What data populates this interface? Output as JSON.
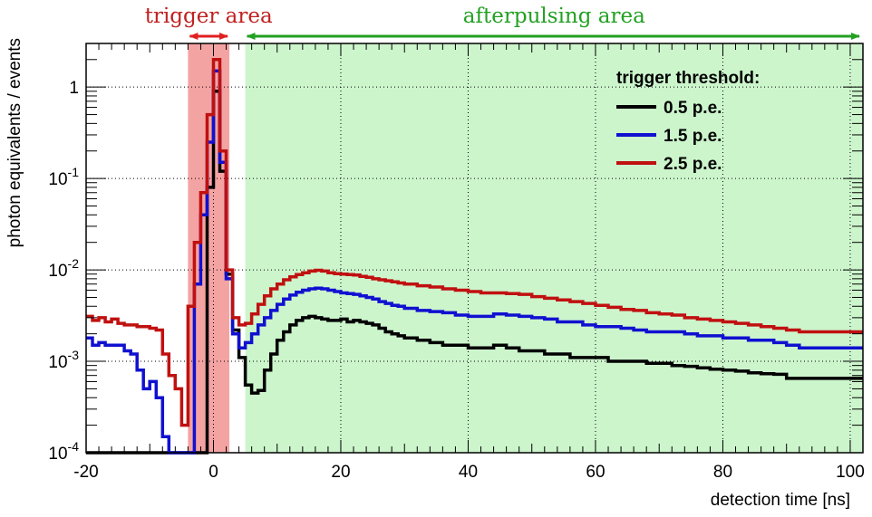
{
  "chart_data": {
    "type": "line",
    "title": "",
    "xlabel": "detection time [ns]",
    "ylabel": "photon equivalents / events",
    "xlim": [
      -20,
      102
    ],
    "ylim": [
      0.0001,
      3
    ],
    "y_scale": "log",
    "grid": true,
    "x_ticks": [
      {
        "value": -20,
        "label": "-20"
      },
      {
        "value": 0,
        "label": "0"
      },
      {
        "value": 20,
        "label": "20"
      },
      {
        "value": 40,
        "label": "40"
      },
      {
        "value": 60,
        "label": "60"
      },
      {
        "value": 80,
        "label": "80"
      },
      {
        "value": 100,
        "label": "100"
      }
    ],
    "y_ticks": [
      {
        "value": 0.0001,
        "base": "10",
        "exp": "-4"
      },
      {
        "value": 0.001,
        "base": "10",
        "exp": "-3"
      },
      {
        "value": 0.01,
        "base": "10",
        "exp": "-2"
      },
      {
        "value": 0.1,
        "base": "10",
        "exp": "-1"
      },
      {
        "value": 1,
        "base": "1",
        "exp": ""
      }
    ],
    "regions": [
      {
        "label": "trigger area",
        "x_range": [
          -4,
          2.5
        ],
        "color": "#f4a3a3",
        "label_color": "#c02020",
        "arrow_color": "#e02020"
      },
      {
        "label": "afterpulsing area",
        "x_range": [
          5,
          102
        ],
        "color": "#ccf5cc",
        "label_color": "#22a022",
        "arrow_color": "#22a022"
      }
    ],
    "legend": {
      "title": "trigger threshold:",
      "position": "top-right"
    },
    "bin_width": 1,
    "series": [
      {
        "name": "0.5 p.e.",
        "color": "#000000",
        "x": [
          -20,
          -19,
          -18,
          -17,
          -16,
          -15,
          -14,
          -13,
          -12,
          -11,
          -10,
          -9,
          -8,
          -7,
          -6,
          -5,
          -4,
          -3,
          -2,
          -1,
          0,
          1,
          2,
          3,
          4,
          5,
          6,
          7,
          8,
          9,
          10,
          11,
          12,
          13,
          14,
          15,
          16,
          17,
          18,
          19,
          20,
          21,
          22,
          23,
          24,
          25,
          26,
          27,
          28,
          29,
          30,
          32,
          34,
          36,
          38,
          40,
          42,
          44,
          46,
          48,
          50,
          52,
          54,
          56,
          58,
          60,
          62,
          64,
          66,
          68,
          70,
          72,
          74,
          76,
          78,
          80,
          82,
          84,
          86,
          88,
          90,
          92,
          94,
          96,
          98,
          100
        ],
        "values": [
          0.0001,
          0.0001,
          0.0001,
          0.0001,
          0.0001,
          0.0001,
          0.0001,
          0.0001,
          0.0001,
          0.0001,
          0.0001,
          0.0001,
          0.0001,
          0.0001,
          0.0001,
          0.0001,
          0.0001,
          0.0001,
          0.0001,
          0.08,
          0.9,
          0.12,
          0.009,
          0.0022,
          0.0011,
          0.00055,
          0.00045,
          0.00048,
          0.0008,
          0.0012,
          0.0017,
          0.0021,
          0.0025,
          0.0028,
          0.003,
          0.0031,
          0.003,
          0.0029,
          0.0028,
          0.0028,
          0.0029,
          0.0027,
          0.0028,
          0.0027,
          0.0026,
          0.0025,
          0.0023,
          0.0021,
          0.002,
          0.0019,
          0.0018,
          0.0017,
          0.0016,
          0.0015,
          0.0015,
          0.0014,
          0.0014,
          0.0015,
          0.0014,
          0.0013,
          0.0013,
          0.0012,
          0.0012,
          0.0011,
          0.0011,
          0.0011,
          0.001,
          0.001,
          0.001,
          0.00095,
          0.00095,
          0.0009,
          0.00088,
          0.00085,
          0.00082,
          0.0008,
          0.00078,
          0.00075,
          0.00073,
          0.00072,
          0.00065,
          0.00065,
          0.00065,
          0.00065,
          0.00065,
          0.00065
        ]
      },
      {
        "name": "1.5  p.e.",
        "color": "#1010d0",
        "x": [
          -20,
          -19,
          -18,
          -17,
          -16,
          -15,
          -14,
          -13,
          -12,
          -11,
          -10,
          -9,
          -8,
          -7,
          -6,
          -5,
          -4,
          -3,
          -2,
          -1,
          0,
          1,
          2,
          3,
          4,
          5,
          6,
          7,
          8,
          9,
          10,
          11,
          12,
          13,
          14,
          15,
          16,
          17,
          18,
          19,
          20,
          21,
          22,
          23,
          24,
          25,
          26,
          27,
          28,
          29,
          30,
          32,
          34,
          36,
          38,
          40,
          42,
          44,
          46,
          48,
          50,
          52,
          54,
          56,
          58,
          60,
          62,
          64,
          66,
          68,
          70,
          72,
          74,
          76,
          78,
          80,
          82,
          84,
          86,
          88,
          90,
          92,
          94,
          96,
          98,
          100
        ],
        "values": [
          0.0018,
          0.0015,
          0.0016,
          0.0015,
          0.0015,
          0.0015,
          0.0013,
          0.0012,
          0.0008,
          0.0005,
          0.0006,
          0.0004,
          0.00015,
          0.0001,
          0.0001,
          0.0001,
          0.0001,
          0.007,
          0.04,
          0.25,
          1.5,
          0.15,
          0.008,
          0.002,
          0.0014,
          0.0016,
          0.002,
          0.0025,
          0.003,
          0.0036,
          0.0042,
          0.0048,
          0.0053,
          0.0057,
          0.006,
          0.0062,
          0.0063,
          0.0062,
          0.006,
          0.0058,
          0.0056,
          0.0055,
          0.0054,
          0.0052,
          0.005,
          0.0048,
          0.0045,
          0.0043,
          0.0041,
          0.004,
          0.0038,
          0.0036,
          0.0035,
          0.0034,
          0.0032,
          0.0031,
          0.0031,
          0.0033,
          0.0032,
          0.0031,
          0.003,
          0.0029,
          0.0027,
          0.0027,
          0.0025,
          0.0024,
          0.0024,
          0.0023,
          0.0022,
          0.0021,
          0.0021,
          0.0021,
          0.002,
          0.0019,
          0.0019,
          0.0018,
          0.0018,
          0.0017,
          0.0017,
          0.0016,
          0.0015,
          0.0014,
          0.0014,
          0.0014,
          0.0014,
          0.0014
        ]
      },
      {
        "name": "2.5  p.e.",
        "color": "#c01010",
        "x": [
          -20,
          -19,
          -18,
          -17,
          -16,
          -15,
          -14,
          -13,
          -12,
          -11,
          -10,
          -9,
          -8,
          -7,
          -6,
          -5,
          -4,
          -3,
          -2,
          -1,
          0,
          1,
          2,
          3,
          4,
          5,
          6,
          7,
          8,
          9,
          10,
          11,
          12,
          13,
          14,
          15,
          16,
          17,
          18,
          19,
          20,
          21,
          22,
          23,
          24,
          25,
          26,
          27,
          28,
          29,
          30,
          32,
          34,
          36,
          38,
          40,
          42,
          44,
          46,
          48,
          50,
          52,
          54,
          56,
          58,
          60,
          62,
          64,
          66,
          68,
          70,
          72,
          74,
          76,
          78,
          80,
          82,
          84,
          86,
          88,
          90,
          92,
          94,
          96,
          98,
          100
        ],
        "values": [
          0.0031,
          0.0028,
          0.003,
          0.0027,
          0.0029,
          0.0026,
          0.0025,
          0.0025,
          0.0024,
          0.0024,
          0.0023,
          0.0022,
          0.0012,
          0.0007,
          0.0005,
          0.0002,
          0.004,
          0.02,
          0.07,
          0.5,
          2.0,
          0.2,
          0.01,
          0.003,
          0.0025,
          0.0026,
          0.0033,
          0.0042,
          0.0052,
          0.0062,
          0.007,
          0.0078,
          0.0084,
          0.0089,
          0.0093,
          0.0097,
          0.0099,
          0.0097,
          0.0093,
          0.0091,
          0.009,
          0.0089,
          0.0088,
          0.0085,
          0.0083,
          0.008,
          0.0078,
          0.0076,
          0.0074,
          0.0072,
          0.007,
          0.0067,
          0.0065,
          0.0062,
          0.006,
          0.0058,
          0.0056,
          0.0056,
          0.0055,
          0.0054,
          0.0051,
          0.0049,
          0.0047,
          0.0045,
          0.0043,
          0.0041,
          0.0039,
          0.0037,
          0.0036,
          0.0034,
          0.0033,
          0.0032,
          0.003,
          0.0029,
          0.0028,
          0.0027,
          0.0026,
          0.0025,
          0.0024,
          0.0023,
          0.0022,
          0.0021,
          0.0021,
          0.0021,
          0.0021,
          0.0021
        ]
      }
    ]
  }
}
